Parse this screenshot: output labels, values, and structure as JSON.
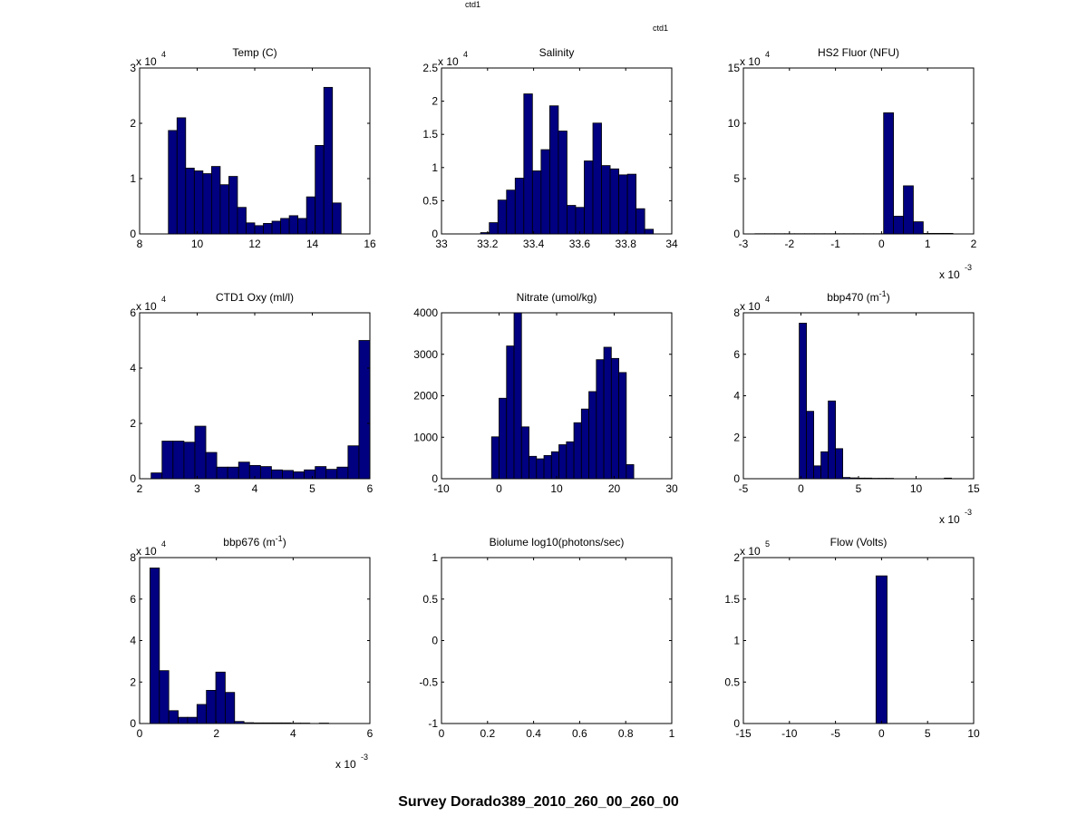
{
  "header": {
    "label_top": "ctd1",
    "label_right": "ctd1"
  },
  "figure_title": "Survey Dorado389_2010_260_00_260_00",
  "bar_color": "#000080",
  "chart_data": [
    {
      "type": "bar",
      "title": "Temp (C)",
      "xlim": [
        8,
        16
      ],
      "ylim": [
        0,
        3
      ],
      "xticks": [
        8,
        10,
        12,
        14,
        16
      ],
      "yticks": [
        0,
        1,
        2,
        3
      ],
      "yexp": "4",
      "xexp": "",
      "bins": {
        "start": 9.0,
        "width": 0.3
      },
      "values": [
        1.87,
        2.1,
        1.19,
        1.14,
        1.09,
        1.22,
        0.89,
        1.04,
        0.48,
        0.2,
        0.15,
        0.19,
        0.23,
        0.28,
        0.33,
        0.28,
        0.67,
        1.6,
        2.65,
        0.56
      ]
    },
    {
      "type": "bar",
      "title": "Salinity",
      "xlim": [
        33,
        34
      ],
      "ylim": [
        0,
        2.5
      ],
      "xticks": [
        33,
        33.2,
        33.4,
        33.6,
        33.8,
        34
      ],
      "yticks": [
        0,
        0.5,
        1,
        1.5,
        2,
        2.5
      ],
      "yexp": "4",
      "xexp": "",
      "bins": {
        "start": 33.17,
        "width": 0.0375
      },
      "values": [
        0.02,
        0.17,
        0.51,
        0.66,
        0.84,
        2.11,
        0.95,
        1.27,
        1.93,
        1.55,
        0.43,
        0.4,
        1.1,
        1.67,
        1.03,
        0.98,
        0.89,
        0.9,
        0.38,
        0.07
      ]
    },
    {
      "type": "bar",
      "title": "HS2 Fluor (NFU)",
      "xlim": [
        -3,
        2
      ],
      "ylim": [
        0,
        15
      ],
      "xticks": [
        -3,
        -2,
        -1,
        0,
        1,
        2
      ],
      "yticks": [
        0,
        5,
        10,
        15
      ],
      "yexp": "4",
      "xexp": "-3",
      "bins": {
        "start": -2.75,
        "width": 0.215
      },
      "values": [
        0.02,
        0.02,
        0.02,
        0.02,
        0.02,
        0.02,
        0.02,
        0.02,
        0.02,
        0.02,
        0.02,
        0.02,
        0.02,
        10.95,
        1.6,
        4.35,
        1.1,
        0.05,
        0.05,
        0.05
      ]
    },
    {
      "type": "bar",
      "title": "CTD1 Oxy (ml/l)",
      "xlim": [
        2,
        6
      ],
      "ylim": [
        0,
        6
      ],
      "xticks": [
        2,
        3,
        4,
        5,
        6
      ],
      "yticks": [
        0,
        2,
        4,
        6
      ],
      "yexp": "4",
      "xexp": "",
      "bins": {
        "start": 2.2,
        "width": 0.19
      },
      "values": [
        0.21,
        1.36,
        1.36,
        1.32,
        1.9,
        0.95,
        0.42,
        0.42,
        0.6,
        0.48,
        0.44,
        0.32,
        0.3,
        0.25,
        0.32,
        0.44,
        0.34,
        0.42,
        1.19,
        5.0
      ]
    },
    {
      "type": "bar",
      "title": "Nitrate (umol/kg)",
      "xlim": [
        -10,
        30
      ],
      "ylim": [
        0,
        4000
      ],
      "xticks": [
        -10,
        0,
        10,
        20,
        30
      ],
      "yticks": [
        0,
        1000,
        2000,
        3000,
        4000
      ],
      "yexp": "",
      "xexp": "",
      "bins": {
        "start": -1.3,
        "width": 1.3
      },
      "values": [
        1010,
        1940,
        3200,
        4000,
        1250,
        540,
        480,
        560,
        650,
        820,
        890,
        1350,
        1680,
        2100,
        2870,
        3170,
        2900,
        2560,
        340
      ]
    },
    {
      "type": "bar",
      "title": "bbp470 (m",
      "title_sup": "-1",
      "title_end": ")",
      "xlim": [
        -5,
        15
      ],
      "ylim": [
        0,
        8
      ],
      "xticks": [
        -5,
        0,
        5,
        10,
        15
      ],
      "yticks": [
        0,
        2,
        4,
        6,
        8
      ],
      "yexp": "4",
      "xexp": "-3",
      "bins": {
        "start": -0.15,
        "width": 0.63
      },
      "values": [
        7.5,
        3.25,
        0.62,
        1.3,
        3.75,
        1.45,
        0.06,
        0.04,
        0.03,
        0.03,
        0.02,
        0.02,
        0.02,
        0.0,
        0.0,
        0.0,
        0.0,
        0.0,
        0.0,
        0.0,
        0.03
      ]
    },
    {
      "type": "bar",
      "title": "bbp676 (m",
      "title_sup": "-1",
      "title_end": ")",
      "xlim": [
        0,
        6
      ],
      "ylim": [
        0,
        8
      ],
      "xticks": [
        0,
        2,
        4,
        6
      ],
      "yticks": [
        0,
        2,
        4,
        6,
        8
      ],
      "yexp": "4",
      "xexp": "-3",
      "bins": {
        "start": 0.27,
        "width": 0.245
      },
      "values": [
        7.5,
        2.55,
        0.62,
        0.3,
        0.3,
        0.92,
        1.6,
        2.48,
        1.5,
        0.1,
        0.04,
        0.03,
        0.03,
        0.03,
        0.03,
        0.02,
        0.02,
        0.0,
        0.02,
        0.0
      ]
    },
    {
      "type": "bar",
      "title": "Biolume log10(photons/sec)",
      "xlim": [
        0,
        1
      ],
      "ylim": [
        -1,
        1
      ],
      "xticks": [
        0,
        0.2,
        0.4,
        0.6,
        0.8,
        1
      ],
      "yticks": [
        -1,
        -0.5,
        0,
        0.5,
        1
      ],
      "yexp": "",
      "xexp": "",
      "bins": {
        "start": 0,
        "width": 0.05
      },
      "values": []
    },
    {
      "type": "bar",
      "title": "Flow (Volts)",
      "xlim": [
        -15,
        10
      ],
      "ylim": [
        0,
        2
      ],
      "xticks": [
        -15,
        -10,
        -5,
        0,
        5,
        10
      ],
      "yticks": [
        0,
        0.5,
        1,
        1.5,
        2
      ],
      "yexp": "5",
      "xexp": "",
      "bins": {
        "start": -0.6,
        "width": 1.2
      },
      "values": [
        1.78
      ]
    }
  ]
}
